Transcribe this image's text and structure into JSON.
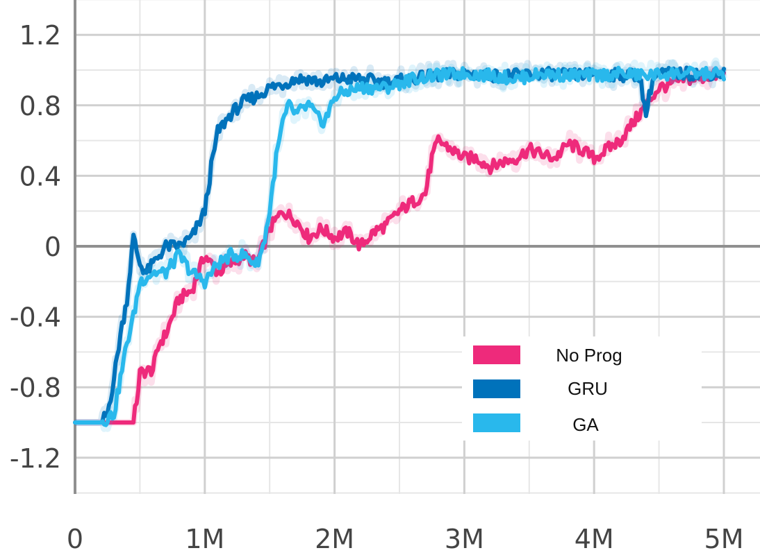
{
  "chart_data": {
    "type": "line",
    "title": "",
    "xlabel": "",
    "ylabel": "",
    "xlim": [
      0,
      5000000
    ],
    "ylim": [
      -1.4,
      1.4
    ],
    "grid": true,
    "legend_position": "bottom-right",
    "x_ticks": [
      {
        "value": 0,
        "label": "0"
      },
      {
        "value": 1000000,
        "label": "1M"
      },
      {
        "value": 2000000,
        "label": "2M"
      },
      {
        "value": 3000000,
        "label": "3M"
      },
      {
        "value": 4000000,
        "label": "4M"
      },
      {
        "value": 5000000,
        "label": "5M"
      }
    ],
    "y_ticks": [
      {
        "value": 1.2,
        "label": "1.2"
      },
      {
        "value": 0.8,
        "label": "0.8"
      },
      {
        "value": 0.4,
        "label": "0.4"
      },
      {
        "value": 0,
        "label": "0"
      },
      {
        "value": -0.4,
        "label": "-0.4"
      },
      {
        "value": -0.8,
        "label": "-0.8"
      },
      {
        "value": -1.2,
        "label": "-1.2"
      }
    ],
    "series": [
      {
        "name": "No Prog",
        "color": "#ee2a7b",
        "x": [
          0,
          200000,
          300000,
          400000,
          450000,
          480000,
          500000,
          600000,
          650000,
          700000,
          800000,
          900000,
          1000000,
          1100000,
          1200000,
          1300000,
          1400000,
          1500000,
          1600000,
          1700000,
          1800000,
          1900000,
          2000000,
          2100000,
          2200000,
          2300000,
          2400000,
          2500000,
          2600000,
          2700000,
          2750000,
          2800000,
          2900000,
          3000000,
          3100000,
          3200000,
          3300000,
          3400000,
          3500000,
          3600000,
          3700000,
          3800000,
          3900000,
          4000000,
          4100000,
          4200000,
          4300000,
          4400000,
          4500000,
          4600000,
          4700000,
          4800000,
          4900000,
          5000000
        ],
        "values": [
          -1.0,
          -1.0,
          -1.0,
          -1.0,
          -1.0,
          -0.85,
          -0.72,
          -0.7,
          -0.55,
          -0.5,
          -0.3,
          -0.25,
          -0.05,
          -0.15,
          -0.1,
          -0.05,
          -0.1,
          0.1,
          0.2,
          0.15,
          0.05,
          0.1,
          0.05,
          0.08,
          0.0,
          0.08,
          0.12,
          0.2,
          0.25,
          0.3,
          0.5,
          0.6,
          0.55,
          0.5,
          0.5,
          0.45,
          0.48,
          0.5,
          0.55,
          0.52,
          0.5,
          0.58,
          0.55,
          0.5,
          0.55,
          0.6,
          0.7,
          0.8,
          0.9,
          0.92,
          0.95,
          0.95,
          0.97,
          0.97
        ]
      },
      {
        "name": "GRU",
        "color": "#0072bb",
        "x": [
          0,
          200000,
          250000,
          300000,
          350000,
          400000,
          450000,
          500000,
          550000,
          600000,
          700000,
          800000,
          900000,
          1000000,
          1050000,
          1100000,
          1150000,
          1200000,
          1300000,
          1400000,
          1500000,
          1600000,
          1700000,
          1800000,
          1900000,
          2000000,
          2200000,
          2400000,
          2600000,
          2800000,
          3000000,
          3200000,
          3400000,
          3600000,
          3800000,
          4000000,
          4200000,
          4350000,
          4400000,
          4450000,
          4500000,
          4700000,
          4900000,
          5000000
        ],
        "values": [
          -1.0,
          -1.0,
          -0.95,
          -0.75,
          -0.5,
          -0.3,
          0.05,
          -0.1,
          -0.15,
          -0.1,
          0.0,
          0.0,
          0.05,
          0.2,
          0.45,
          0.65,
          0.7,
          0.75,
          0.82,
          0.85,
          0.9,
          0.92,
          0.95,
          0.95,
          0.93,
          0.95,
          0.95,
          0.93,
          0.95,
          0.97,
          0.98,
          0.97,
          0.97,
          0.98,
          0.97,
          0.98,
          0.97,
          0.97,
          0.75,
          0.95,
          0.98,
          0.98,
          0.98,
          0.98
        ]
      },
      {
        "name": "GA",
        "color": "#29b8ec",
        "x": [
          0,
          200000,
          300000,
          350000,
          400000,
          450000,
          500000,
          600000,
          700000,
          800000,
          900000,
          1000000,
          1100000,
          1200000,
          1300000,
          1400000,
          1450000,
          1500000,
          1550000,
          1600000,
          1650000,
          1700000,
          1800000,
          1900000,
          1950000,
          2000000,
          2100000,
          2200000,
          2400000,
          2600000,
          2800000,
          3000000,
          3200000,
          3400000,
          3600000,
          3800000,
          4000000,
          4200000,
          4400000,
          4600000,
          4800000,
          5000000
        ],
        "values": [
          -1.0,
          -1.0,
          -0.95,
          -0.75,
          -0.55,
          -0.4,
          -0.2,
          -0.15,
          -0.15,
          -0.05,
          -0.15,
          -0.2,
          -0.1,
          -0.05,
          -0.05,
          -0.1,
          0.0,
          0.2,
          0.5,
          0.7,
          0.8,
          0.75,
          0.8,
          0.7,
          0.75,
          0.85,
          0.88,
          0.9,
          0.9,
          0.95,
          0.97,
          0.98,
          0.97,
          0.95,
          0.98,
          0.97,
          0.97,
          0.98,
          0.97,
          0.98,
          0.98,
          0.98
        ]
      }
    ]
  }
}
